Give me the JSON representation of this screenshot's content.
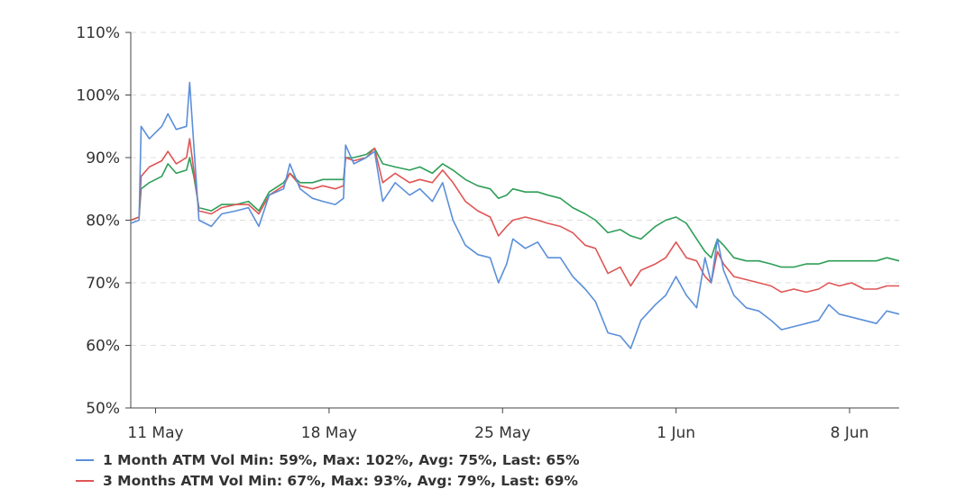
{
  "chart_data": {
    "type": "line",
    "yticks": [
      "50%",
      "60%",
      "70%",
      "80%",
      "90%",
      "100%",
      "110%"
    ],
    "xticks": [
      "11 May",
      "18 May",
      "25 May",
      "1 Jun",
      "8 Jun"
    ],
    "ylim": [
      50,
      110
    ],
    "xlim": [
      "2021-05-10T00:00",
      "2021-06-10T00:00"
    ],
    "grid": true,
    "legend_position": "bottom-left",
    "series": [
      {
        "name": "1 Month ATM Vol",
        "color": "#5b8fd9",
        "stats": "Min: 59%, Max: 102%, Avg: 75%, Last: 65%",
        "points": [
          [
            "2021-05-10T00:00",
            79.5
          ],
          [
            "2021-05-10T08:00",
            80.0
          ],
          [
            "2021-05-10T10:00",
            95.0
          ],
          [
            "2021-05-10T18:00",
            93.0
          ],
          [
            "2021-05-11T06:00",
            95.0
          ],
          [
            "2021-05-11T12:00",
            97.0
          ],
          [
            "2021-05-11T20:00",
            94.5
          ],
          [
            "2021-05-12T06:00",
            95.0
          ],
          [
            "2021-05-12T09:00",
            102.0
          ],
          [
            "2021-05-12T13:00",
            92.0
          ],
          [
            "2021-05-12T18:00",
            80.0
          ],
          [
            "2021-05-13T06:00",
            79.0
          ],
          [
            "2021-05-13T16:00",
            81.0
          ],
          [
            "2021-05-14T06:00",
            81.5
          ],
          [
            "2021-05-14T18:00",
            82.0
          ],
          [
            "2021-05-15T04:00",
            79.0
          ],
          [
            "2021-05-15T14:00",
            84.0
          ],
          [
            "2021-05-16T04:00",
            85.0
          ],
          [
            "2021-05-16T10:00",
            89.0
          ],
          [
            "2021-05-16T20:00",
            85.0
          ],
          [
            "2021-05-17T08:00",
            83.5
          ],
          [
            "2021-05-17T18:00",
            83.0
          ],
          [
            "2021-05-18T06:00",
            82.5
          ],
          [
            "2021-05-18T14:00",
            83.5
          ],
          [
            "2021-05-18T16:00",
            92.0
          ],
          [
            "2021-05-19T00:00",
            89.0
          ],
          [
            "2021-05-19T12:00",
            90.0
          ],
          [
            "2021-05-19T20:00",
            91.0
          ],
          [
            "2021-05-20T04:00",
            83.0
          ],
          [
            "2021-05-20T16:00",
            86.0
          ],
          [
            "2021-05-21T06:00",
            84.0
          ],
          [
            "2021-05-21T16:00",
            85.0
          ],
          [
            "2021-05-22T04:00",
            83.0
          ],
          [
            "2021-05-22T14:00",
            86.0
          ],
          [
            "2021-05-23T00:00",
            80.0
          ],
          [
            "2021-05-23T12:00",
            76.0
          ],
          [
            "2021-05-24T00:00",
            74.5
          ],
          [
            "2021-05-24T12:00",
            74.0
          ],
          [
            "2021-05-24T20:00",
            70.0
          ],
          [
            "2021-05-25T04:00",
            73.0
          ],
          [
            "2021-05-25T10:00",
            77.0
          ],
          [
            "2021-05-25T22:00",
            75.5
          ],
          [
            "2021-05-26T10:00",
            76.5
          ],
          [
            "2021-05-26T20:00",
            74.0
          ],
          [
            "2021-05-27T08:00",
            74.0
          ],
          [
            "2021-05-27T20:00",
            71.0
          ],
          [
            "2021-05-28T08:00",
            69.0
          ],
          [
            "2021-05-28T18:00",
            67.0
          ],
          [
            "2021-05-29T06:00",
            62.0
          ],
          [
            "2021-05-29T18:00",
            61.5
          ],
          [
            "2021-05-30T04:00",
            59.5
          ],
          [
            "2021-05-30T14:00",
            64.0
          ],
          [
            "2021-05-31T04:00",
            66.5
          ],
          [
            "2021-05-31T14:00",
            68.0
          ],
          [
            "2021-06-01T00:00",
            71.0
          ],
          [
            "2021-06-01T10:00",
            68.0
          ],
          [
            "2021-06-01T20:00",
            66.0
          ],
          [
            "2021-06-02T04:00",
            74.0
          ],
          [
            "2021-06-02T10:00",
            70.0
          ],
          [
            "2021-06-02T16:00",
            77.0
          ],
          [
            "2021-06-02T22:00",
            72.0
          ],
          [
            "2021-06-03T08:00",
            68.0
          ],
          [
            "2021-06-03T20:00",
            66.0
          ],
          [
            "2021-06-04T08:00",
            65.5
          ],
          [
            "2021-06-04T20:00",
            64.0
          ],
          [
            "2021-06-05T06:00",
            62.5
          ],
          [
            "2021-06-05T18:00",
            63.0
          ],
          [
            "2021-06-06T06:00",
            63.5
          ],
          [
            "2021-06-06T18:00",
            64.0
          ],
          [
            "2021-06-07T04:00",
            66.5
          ],
          [
            "2021-06-07T14:00",
            65.0
          ],
          [
            "2021-06-08T02:00",
            64.5
          ],
          [
            "2021-06-08T14:00",
            64.0
          ],
          [
            "2021-06-09T02:00",
            63.5
          ],
          [
            "2021-06-09T12:00",
            65.5
          ],
          [
            "2021-06-10T00:00",
            65.0
          ]
        ]
      },
      {
        "name": "3 Months ATM Vol",
        "color": "#e05555",
        "stats": "Min: 67%, Max: 93%, Avg: 79%, Last: 69%",
        "points": [
          [
            "2021-05-10T00:00",
            80.0
          ],
          [
            "2021-05-10T08:00",
            80.5
          ],
          [
            "2021-05-10T10:00",
            87.0
          ],
          [
            "2021-05-10T18:00",
            88.5
          ],
          [
            "2021-05-11T06:00",
            89.5
          ],
          [
            "2021-05-11T12:00",
            91.0
          ],
          [
            "2021-05-11T20:00",
            89.0
          ],
          [
            "2021-05-12T06:00",
            90.0
          ],
          [
            "2021-05-12T09:00",
            93.0
          ],
          [
            "2021-05-12T13:00",
            88.0
          ],
          [
            "2021-05-12T18:00",
            81.5
          ],
          [
            "2021-05-13T06:00",
            81.0
          ],
          [
            "2021-05-13T16:00",
            82.0
          ],
          [
            "2021-05-14T06:00",
            82.5
          ],
          [
            "2021-05-14T18:00",
            82.5
          ],
          [
            "2021-05-15T04:00",
            81.0
          ],
          [
            "2021-05-15T14:00",
            84.0
          ],
          [
            "2021-05-16T04:00",
            85.5
          ],
          [
            "2021-05-16T10:00",
            87.5
          ],
          [
            "2021-05-16T20:00",
            85.5
          ],
          [
            "2021-05-17T08:00",
            85.0
          ],
          [
            "2021-05-17T18:00",
            85.5
          ],
          [
            "2021-05-18T06:00",
            85.0
          ],
          [
            "2021-05-18T14:00",
            85.5
          ],
          [
            "2021-05-18T16:00",
            90.0
          ],
          [
            "2021-05-19T00:00",
            89.5
          ],
          [
            "2021-05-19T12:00",
            90.0
          ],
          [
            "2021-05-19T20:00",
            91.5
          ],
          [
            "2021-05-20T04:00",
            86.0
          ],
          [
            "2021-05-20T16:00",
            87.5
          ],
          [
            "2021-05-21T06:00",
            86.0
          ],
          [
            "2021-05-21T16:00",
            86.5
          ],
          [
            "2021-05-22T04:00",
            86.0
          ],
          [
            "2021-05-22T14:00",
            88.0
          ],
          [
            "2021-05-23T00:00",
            86.0
          ],
          [
            "2021-05-23T12:00",
            83.0
          ],
          [
            "2021-05-24T00:00",
            81.5
          ],
          [
            "2021-05-24T12:00",
            80.5
          ],
          [
            "2021-05-24T20:00",
            77.5
          ],
          [
            "2021-05-25T04:00",
            79.0
          ],
          [
            "2021-05-25T10:00",
            80.0
          ],
          [
            "2021-05-25T22:00",
            80.5
          ],
          [
            "2021-05-26T10:00",
            80.0
          ],
          [
            "2021-05-26T20:00",
            79.5
          ],
          [
            "2021-05-27T08:00",
            79.0
          ],
          [
            "2021-05-27T20:00",
            78.0
          ],
          [
            "2021-05-28T08:00",
            76.0
          ],
          [
            "2021-05-28T18:00",
            75.5
          ],
          [
            "2021-05-29T06:00",
            71.5
          ],
          [
            "2021-05-29T18:00",
            72.5
          ],
          [
            "2021-05-30T04:00",
            69.5
          ],
          [
            "2021-05-30T14:00",
            72.0
          ],
          [
            "2021-05-31T04:00",
            73.0
          ],
          [
            "2021-05-31T14:00",
            74.0
          ],
          [
            "2021-06-01T00:00",
            76.5
          ],
          [
            "2021-06-01T10:00",
            74.0
          ],
          [
            "2021-06-01T20:00",
            73.5
          ],
          [
            "2021-06-02T04:00",
            71.0
          ],
          [
            "2021-06-02T10:00",
            70.0
          ],
          [
            "2021-06-02T16:00",
            75.0
          ],
          [
            "2021-06-02T22:00",
            73.0
          ],
          [
            "2021-06-03T08:00",
            71.0
          ],
          [
            "2021-06-03T20:00",
            70.5
          ],
          [
            "2021-06-04T08:00",
            70.0
          ],
          [
            "2021-06-04T20:00",
            69.5
          ],
          [
            "2021-06-05T06:00",
            68.5
          ],
          [
            "2021-06-05T18:00",
            69.0
          ],
          [
            "2021-06-06T06:00",
            68.5
          ],
          [
            "2021-06-06T18:00",
            69.0
          ],
          [
            "2021-06-07T04:00",
            70.0
          ],
          [
            "2021-06-07T14:00",
            69.5
          ],
          [
            "2021-06-08T02:00",
            70.0
          ],
          [
            "2021-06-08T14:00",
            69.0
          ],
          [
            "2021-06-09T02:00",
            69.0
          ],
          [
            "2021-06-09T12:00",
            69.5
          ],
          [
            "2021-06-10T00:00",
            69.5
          ]
        ]
      },
      {
        "name": "",
        "color": "#2e9e57",
        "stats": "",
        "points": [
          [
            "2021-05-10T00:00",
            80.0
          ],
          [
            "2021-05-10T08:00",
            80.5
          ],
          [
            "2021-05-10T10:00",
            85.0
          ],
          [
            "2021-05-10T18:00",
            86.0
          ],
          [
            "2021-05-11T06:00",
            87.0
          ],
          [
            "2021-05-11T12:00",
            89.0
          ],
          [
            "2021-05-11T20:00",
            87.5
          ],
          [
            "2021-05-12T06:00",
            88.0
          ],
          [
            "2021-05-12T09:00",
            90.0
          ],
          [
            "2021-05-12T13:00",
            87.0
          ],
          [
            "2021-05-12T18:00",
            82.0
          ],
          [
            "2021-05-13T06:00",
            81.5
          ],
          [
            "2021-05-13T16:00",
            82.5
          ],
          [
            "2021-05-14T06:00",
            82.5
          ],
          [
            "2021-05-14T18:00",
            83.0
          ],
          [
            "2021-05-15T04:00",
            81.5
          ],
          [
            "2021-05-15T14:00",
            84.5
          ],
          [
            "2021-05-16T04:00",
            86.0
          ],
          [
            "2021-05-16T10:00",
            87.5
          ],
          [
            "2021-05-16T20:00",
            86.0
          ],
          [
            "2021-05-17T08:00",
            86.0
          ],
          [
            "2021-05-17T18:00",
            86.5
          ],
          [
            "2021-05-18T06:00",
            86.5
          ],
          [
            "2021-05-18T14:00",
            86.5
          ],
          [
            "2021-05-18T16:00",
            90.0
          ],
          [
            "2021-05-19T00:00",
            90.0
          ],
          [
            "2021-05-19T12:00",
            90.5
          ],
          [
            "2021-05-19T20:00",
            91.5
          ],
          [
            "2021-05-20T04:00",
            89.0
          ],
          [
            "2021-05-20T16:00",
            88.5
          ],
          [
            "2021-05-21T06:00",
            88.0
          ],
          [
            "2021-05-21T16:00",
            88.5
          ],
          [
            "2021-05-22T04:00",
            87.5
          ],
          [
            "2021-05-22T14:00",
            89.0
          ],
          [
            "2021-05-23T00:00",
            88.0
          ],
          [
            "2021-05-23T12:00",
            86.5
          ],
          [
            "2021-05-24T00:00",
            85.5
          ],
          [
            "2021-05-24T12:00",
            85.0
          ],
          [
            "2021-05-24T20:00",
            83.5
          ],
          [
            "2021-05-25T04:00",
            84.0
          ],
          [
            "2021-05-25T10:00",
            85.0
          ],
          [
            "2021-05-25T22:00",
            84.5
          ],
          [
            "2021-05-26T10:00",
            84.5
          ],
          [
            "2021-05-26T20:00",
            84.0
          ],
          [
            "2021-05-27T08:00",
            83.5
          ],
          [
            "2021-05-27T20:00",
            82.0
          ],
          [
            "2021-05-28T08:00",
            81.0
          ],
          [
            "2021-05-28T18:00",
            80.0
          ],
          [
            "2021-05-29T06:00",
            78.0
          ],
          [
            "2021-05-29T18:00",
            78.5
          ],
          [
            "2021-05-30T04:00",
            77.5
          ],
          [
            "2021-05-30T14:00",
            77.0
          ],
          [
            "2021-05-31T04:00",
            79.0
          ],
          [
            "2021-05-31T14:00",
            80.0
          ],
          [
            "2021-06-01T00:00",
            80.5
          ],
          [
            "2021-06-01T10:00",
            79.5
          ],
          [
            "2021-06-01T20:00",
            77.0
          ],
          [
            "2021-06-02T04:00",
            75.0
          ],
          [
            "2021-06-02T10:00",
            74.0
          ],
          [
            "2021-06-02T16:00",
            77.0
          ],
          [
            "2021-06-02T22:00",
            76.0
          ],
          [
            "2021-06-03T08:00",
            74.0
          ],
          [
            "2021-06-03T20:00",
            73.5
          ],
          [
            "2021-06-04T08:00",
            73.5
          ],
          [
            "2021-06-04T20:00",
            73.0
          ],
          [
            "2021-06-05T06:00",
            72.5
          ],
          [
            "2021-06-05T18:00",
            72.5
          ],
          [
            "2021-06-06T06:00",
            73.0
          ],
          [
            "2021-06-06T18:00",
            73.0
          ],
          [
            "2021-06-07T04:00",
            73.5
          ],
          [
            "2021-06-07T14:00",
            73.5
          ],
          [
            "2021-06-08T02:00",
            73.5
          ],
          [
            "2021-06-08T14:00",
            73.5
          ],
          [
            "2021-06-09T02:00",
            73.5
          ],
          [
            "2021-06-09T12:00",
            74.0
          ],
          [
            "2021-06-10T00:00",
            73.5
          ]
        ]
      }
    ]
  }
}
